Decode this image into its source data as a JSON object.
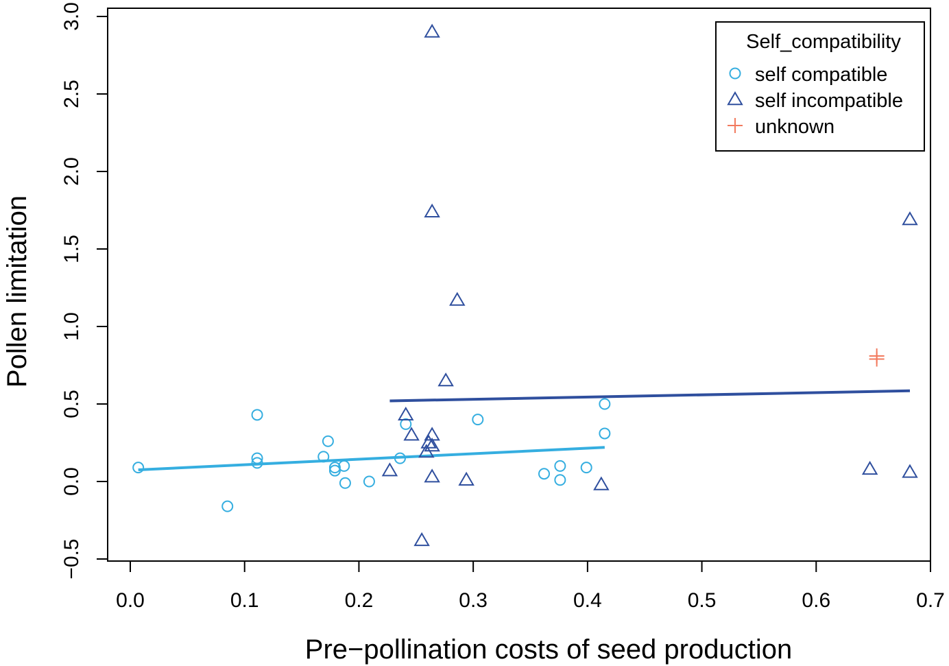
{
  "chart_data": {
    "type": "scatter",
    "xlabel": "Pre−pollination costs of seed production",
    "ylabel": "Pollen limitation",
    "xlim": [
      0.0,
      0.7
    ],
    "ylim": [
      -0.5,
      3.0
    ],
    "x_ticks": [
      "0.0",
      "0.1",
      "0.2",
      "0.3",
      "0.4",
      "0.5",
      "0.6",
      "0.7"
    ],
    "y_ticks": [
      "−0.5",
      "0.0",
      "0.5",
      "1.0",
      "1.5",
      "2.0",
      "2.5",
      "3.0"
    ],
    "x_tick_values": [
      0.0,
      0.1,
      0.2,
      0.3,
      0.4,
      0.5,
      0.6,
      0.7
    ],
    "y_tick_values": [
      -0.5,
      0.0,
      0.5,
      1.0,
      1.5,
      2.0,
      2.5,
      3.0
    ],
    "grid": false,
    "legend": {
      "title": "Self_compatibility",
      "placement": "top-right"
    },
    "series": [
      {
        "name": "self compatible",
        "marker": "circle",
        "color": "#35aee0",
        "points": [
          [
            0.007,
            0.09
          ],
          [
            0.085,
            -0.16
          ],
          [
            0.111,
            0.43
          ],
          [
            0.111,
            0.15
          ],
          [
            0.111,
            0.12
          ],
          [
            0.169,
            0.16
          ],
          [
            0.173,
            0.26
          ],
          [
            0.179,
            0.09
          ],
          [
            0.179,
            0.07
          ],
          [
            0.187,
            0.1
          ],
          [
            0.188,
            -0.01
          ],
          [
            0.209,
            0.0
          ],
          [
            0.236,
            0.15
          ],
          [
            0.241,
            0.37
          ],
          [
            0.304,
            0.4
          ],
          [
            0.362,
            0.05
          ],
          [
            0.376,
            0.1
          ],
          [
            0.376,
            0.01
          ],
          [
            0.399,
            0.09
          ],
          [
            0.415,
            0.5
          ],
          [
            0.415,
            0.31
          ]
        ],
        "fit_line": [
          [
            0.007,
            0.075
          ],
          [
            0.415,
            0.22
          ]
        ]
      },
      {
        "name": "self incompatible",
        "marker": "triangle",
        "color": "#2f4f9e",
        "points": [
          [
            0.264,
            2.9
          ],
          [
            0.264,
            1.74
          ],
          [
            0.286,
            1.17
          ],
          [
            0.276,
            0.65
          ],
          [
            0.241,
            0.43
          ],
          [
            0.246,
            0.3
          ],
          [
            0.264,
            0.3
          ],
          [
            0.261,
            0.25
          ],
          [
            0.264,
            0.23
          ],
          [
            0.259,
            0.19
          ],
          [
            0.227,
            0.07
          ],
          [
            0.264,
            0.03
          ],
          [
            0.294,
            0.01
          ],
          [
            0.412,
            -0.02
          ],
          [
            0.255,
            -0.38
          ],
          [
            0.647,
            0.08
          ],
          [
            0.682,
            0.06
          ],
          [
            0.682,
            1.69
          ]
        ],
        "fit_line": [
          [
            0.227,
            0.52
          ],
          [
            0.682,
            0.585
          ]
        ]
      },
      {
        "name": "unknown",
        "marker": "plus",
        "color": "#f27a5e",
        "points": [
          [
            0.653,
            0.81
          ],
          [
            0.653,
            0.79
          ]
        ]
      }
    ]
  }
}
